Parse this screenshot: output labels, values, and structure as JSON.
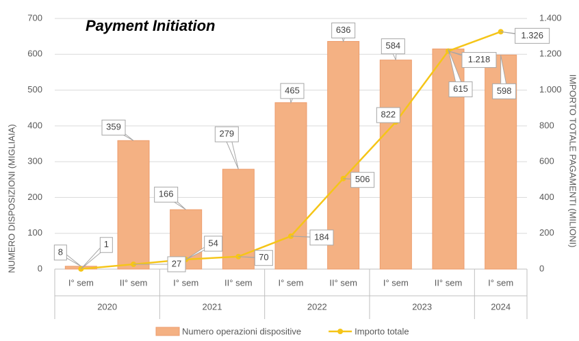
{
  "chart_data": {
    "type": "bar-line",
    "title": "Payment Initiation",
    "categories": [
      "I° sem",
      "II° sem",
      "I° sem",
      "II° sem",
      "I° sem",
      "II° sem",
      "I° sem",
      "II° sem",
      "I° sem"
    ],
    "groups": [
      {
        "name": "2020",
        "size": 2
      },
      {
        "name": "2021",
        "size": 2
      },
      {
        "name": "2022",
        "size": 2
      },
      {
        "name": "2023",
        "size": 2
      },
      {
        "name": "2024",
        "size": 1
      }
    ],
    "y_label": "NUMERO DISPOSIZIONI (MIGLIAIA)",
    "y2_label": "IMPORTO TOTALE PAGAMENTI (MILIONI)",
    "ylim": [
      0,
      700
    ],
    "yticks": [
      0,
      100,
      200,
      300,
      400,
      500,
      600,
      700
    ],
    "y2lim": [
      0,
      1400
    ],
    "y2ticks": [
      0,
      200,
      400,
      600,
      800,
      {
        "value": 1000,
        "label": "1.000"
      },
      {
        "value": 1200,
        "label": "1.200"
      },
      {
        "value": 1400,
        "label": "1.400"
      }
    ],
    "grid": true,
    "series": [
      {
        "name": "Numero operazioni dispositive",
        "kind": "bar",
        "color": "#f4b183",
        "values": [
          8,
          359,
          166,
          279,
          465,
          636,
          584,
          615,
          598
        ]
      },
      {
        "name": "Importo totale",
        "kind": "line",
        "axis": "y2",
        "color": "#f5c518",
        "values": [
          1,
          27,
          54,
          70,
          184,
          506,
          822,
          1218,
          1326
        ],
        "value_labels": [
          "1",
          "27",
          "54",
          "70",
          "184",
          "506",
          "822",
          "1.218",
          "1.326"
        ]
      }
    ],
    "legend": "bottom"
  }
}
